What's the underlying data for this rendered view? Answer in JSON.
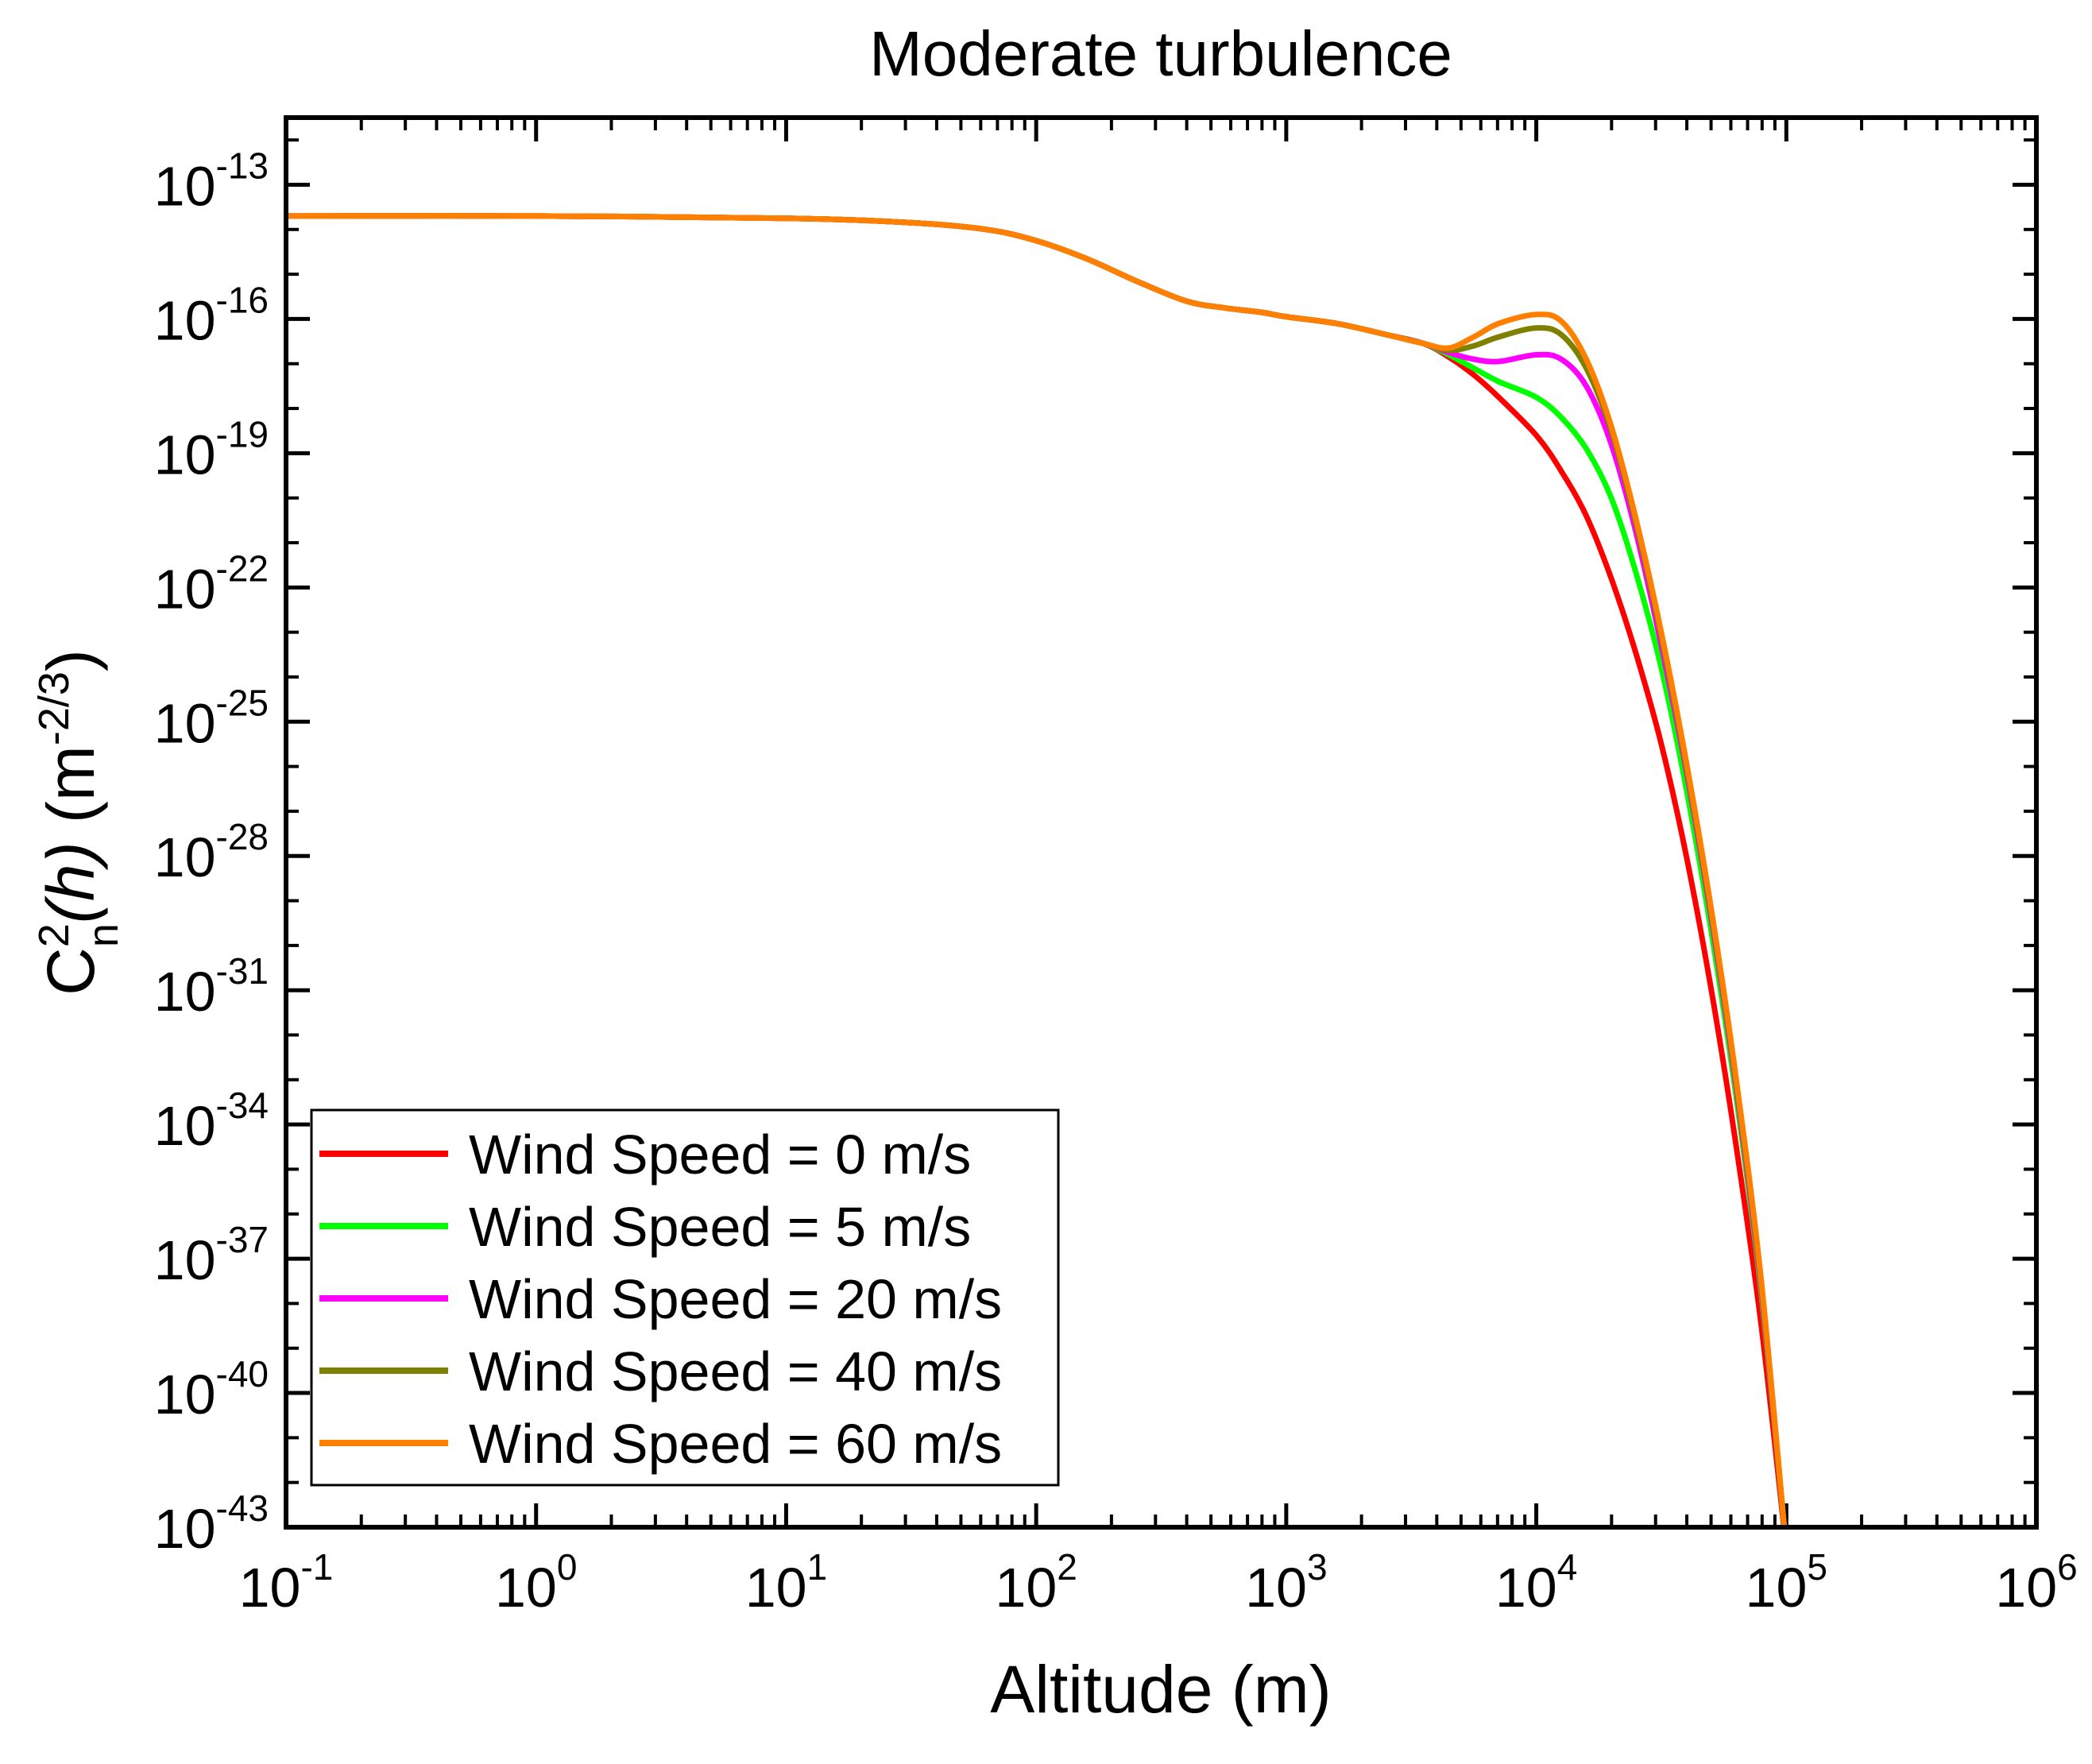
{
  "chart_data": {
    "type": "line",
    "title": "Moderate turbulence",
    "xlabel": "Altitude (m)",
    "ylabel": {
      "prefix": "C",
      "sup": "2",
      "sub": "n",
      "func": "(h)",
      "func_var": "h",
      "unit_open": " (m",
      "unit_exp": "-2/3",
      "unit_close": ")"
    },
    "xscale": "log",
    "yscale": "log",
    "xlim_exp": [
      -1,
      6
    ],
    "ylim_exp": [
      -43,
      -11.5
    ],
    "x_ticks": [
      {
        "base": "10",
        "exp": "-1"
      },
      {
        "base": "10",
        "exp": "0"
      },
      {
        "base": "10",
        "exp": "1"
      },
      {
        "base": "10",
        "exp": "2"
      },
      {
        "base": "10",
        "exp": "3"
      },
      {
        "base": "10",
        "exp": "4"
      },
      {
        "base": "10",
        "exp": "5"
      },
      {
        "base": "10",
        "exp": "6"
      }
    ],
    "y_ticks": [
      {
        "base": "10",
        "exp": "-13"
      },
      {
        "base": "10",
        "exp": "-16"
      },
      {
        "base": "10",
        "exp": "-19"
      },
      {
        "base": "10",
        "exp": "-22"
      },
      {
        "base": "10",
        "exp": "-25"
      },
      {
        "base": "10",
        "exp": "-28"
      },
      {
        "base": "10",
        "exp": "-31"
      },
      {
        "base": "10",
        "exp": "-34"
      },
      {
        "base": "10",
        "exp": "-37"
      },
      {
        "base": "10",
        "exp": "-40"
      },
      {
        "base": "10",
        "exp": "-43"
      }
    ],
    "legend_position": "bottom-left",
    "series": [
      {
        "name": "Wind Speed = 0 m/s",
        "color": "#ff0000",
        "x_log10": [
          -1,
          0,
          1,
          1.5,
          1.8,
          2.0,
          2.2,
          2.4,
          2.6,
          2.75,
          2.9,
          3.0,
          3.2,
          3.4,
          3.55,
          3.65,
          3.75,
          3.85,
          4.0,
          4.1,
          4.2,
          4.3,
          4.4,
          4.5,
          4.6,
          4.7,
          4.8,
          4.9,
          5.0
        ],
        "y_log10": [
          -13.7,
          -13.7,
          -13.75,
          -13.85,
          -14.0,
          -14.25,
          -14.65,
          -15.15,
          -15.6,
          -15.75,
          -15.85,
          -15.95,
          -16.1,
          -16.35,
          -16.55,
          -16.85,
          -17.25,
          -17.75,
          -18.6,
          -19.4,
          -20.4,
          -21.8,
          -23.5,
          -25.5,
          -28.0,
          -31.0,
          -34.5,
          -38.5,
          -43.5
        ]
      },
      {
        "name": "Wind Speed = 5 m/s",
        "color": "#00ff00",
        "x_log10": [
          -1,
          0,
          1,
          1.5,
          1.8,
          2.0,
          2.2,
          2.4,
          2.6,
          2.75,
          2.9,
          3.0,
          3.2,
          3.4,
          3.55,
          3.65,
          3.75,
          3.85,
          4.0,
          4.1,
          4.2,
          4.3,
          4.4,
          4.5,
          4.6,
          4.7,
          4.8,
          4.9,
          5.0
        ],
        "y_log10": [
          -13.7,
          -13.7,
          -13.75,
          -13.85,
          -14.0,
          -14.25,
          -14.65,
          -15.15,
          -15.6,
          -15.75,
          -15.85,
          -15.95,
          -16.1,
          -16.35,
          -16.55,
          -16.8,
          -17.1,
          -17.4,
          -17.75,
          -18.2,
          -18.9,
          -20.0,
          -21.7,
          -23.8,
          -26.5,
          -29.7,
          -33.4,
          -37.8,
          -43.5
        ]
      },
      {
        "name": "Wind Speed = 20 m/s",
        "color": "#ff00ff",
        "x_log10": [
          -1,
          0,
          1,
          1.5,
          1.8,
          2.0,
          2.2,
          2.4,
          2.6,
          2.75,
          2.9,
          3.0,
          3.2,
          3.4,
          3.55,
          3.65,
          3.75,
          3.85,
          4.0,
          4.1,
          4.2,
          4.3,
          4.4,
          4.5,
          4.6,
          4.7,
          4.8,
          4.9,
          5.0
        ],
        "y_log10": [
          -13.7,
          -13.7,
          -13.75,
          -13.85,
          -14.0,
          -14.25,
          -14.65,
          -15.15,
          -15.6,
          -15.75,
          -15.85,
          -15.95,
          -16.1,
          -16.35,
          -16.55,
          -16.75,
          -16.9,
          -16.95,
          -16.8,
          -16.9,
          -17.5,
          -18.8,
          -20.8,
          -23.3,
          -26.1,
          -29.4,
          -33.2,
          -37.7,
          -43.5
        ]
      },
      {
        "name": "Wind Speed = 40 m/s",
        "color": "#808000",
        "x_log10": [
          -1,
          0,
          1,
          1.5,
          1.8,
          2.0,
          2.2,
          2.4,
          2.6,
          2.75,
          2.9,
          3.0,
          3.2,
          3.4,
          3.55,
          3.65,
          3.75,
          3.85,
          4.0,
          4.1,
          4.2,
          4.3,
          4.4,
          4.5,
          4.6,
          4.7,
          4.8,
          4.9,
          5.0
        ],
        "y_log10": [
          -13.7,
          -13.7,
          -13.75,
          -13.85,
          -14.0,
          -14.25,
          -14.65,
          -15.15,
          -15.6,
          -15.75,
          -15.85,
          -15.95,
          -16.1,
          -16.35,
          -16.55,
          -16.7,
          -16.6,
          -16.4,
          -16.2,
          -16.35,
          -17.1,
          -18.5,
          -20.6,
          -23.1,
          -26.0,
          -29.3,
          -33.1,
          -37.6,
          -43.5
        ]
      },
      {
        "name": "Wind Speed = 60 m/s",
        "color": "#ff8000",
        "x_log10": [
          -1,
          0,
          1,
          1.5,
          1.8,
          2.0,
          2.2,
          2.4,
          2.6,
          2.75,
          2.9,
          3.0,
          3.2,
          3.4,
          3.55,
          3.65,
          3.75,
          3.85,
          4.0,
          4.1,
          4.2,
          4.3,
          4.4,
          4.5,
          4.6,
          4.7,
          4.8,
          4.9,
          5.0
        ],
        "y_log10": [
          -13.7,
          -13.7,
          -13.75,
          -13.85,
          -14.0,
          -14.25,
          -14.65,
          -15.15,
          -15.6,
          -15.75,
          -15.85,
          -15.95,
          -16.1,
          -16.35,
          -16.55,
          -16.65,
          -16.4,
          -16.1,
          -15.9,
          -16.05,
          -16.9,
          -18.4,
          -20.5,
          -23.0,
          -25.9,
          -29.2,
          -33.0,
          -37.5,
          -43.5
        ]
      }
    ]
  }
}
